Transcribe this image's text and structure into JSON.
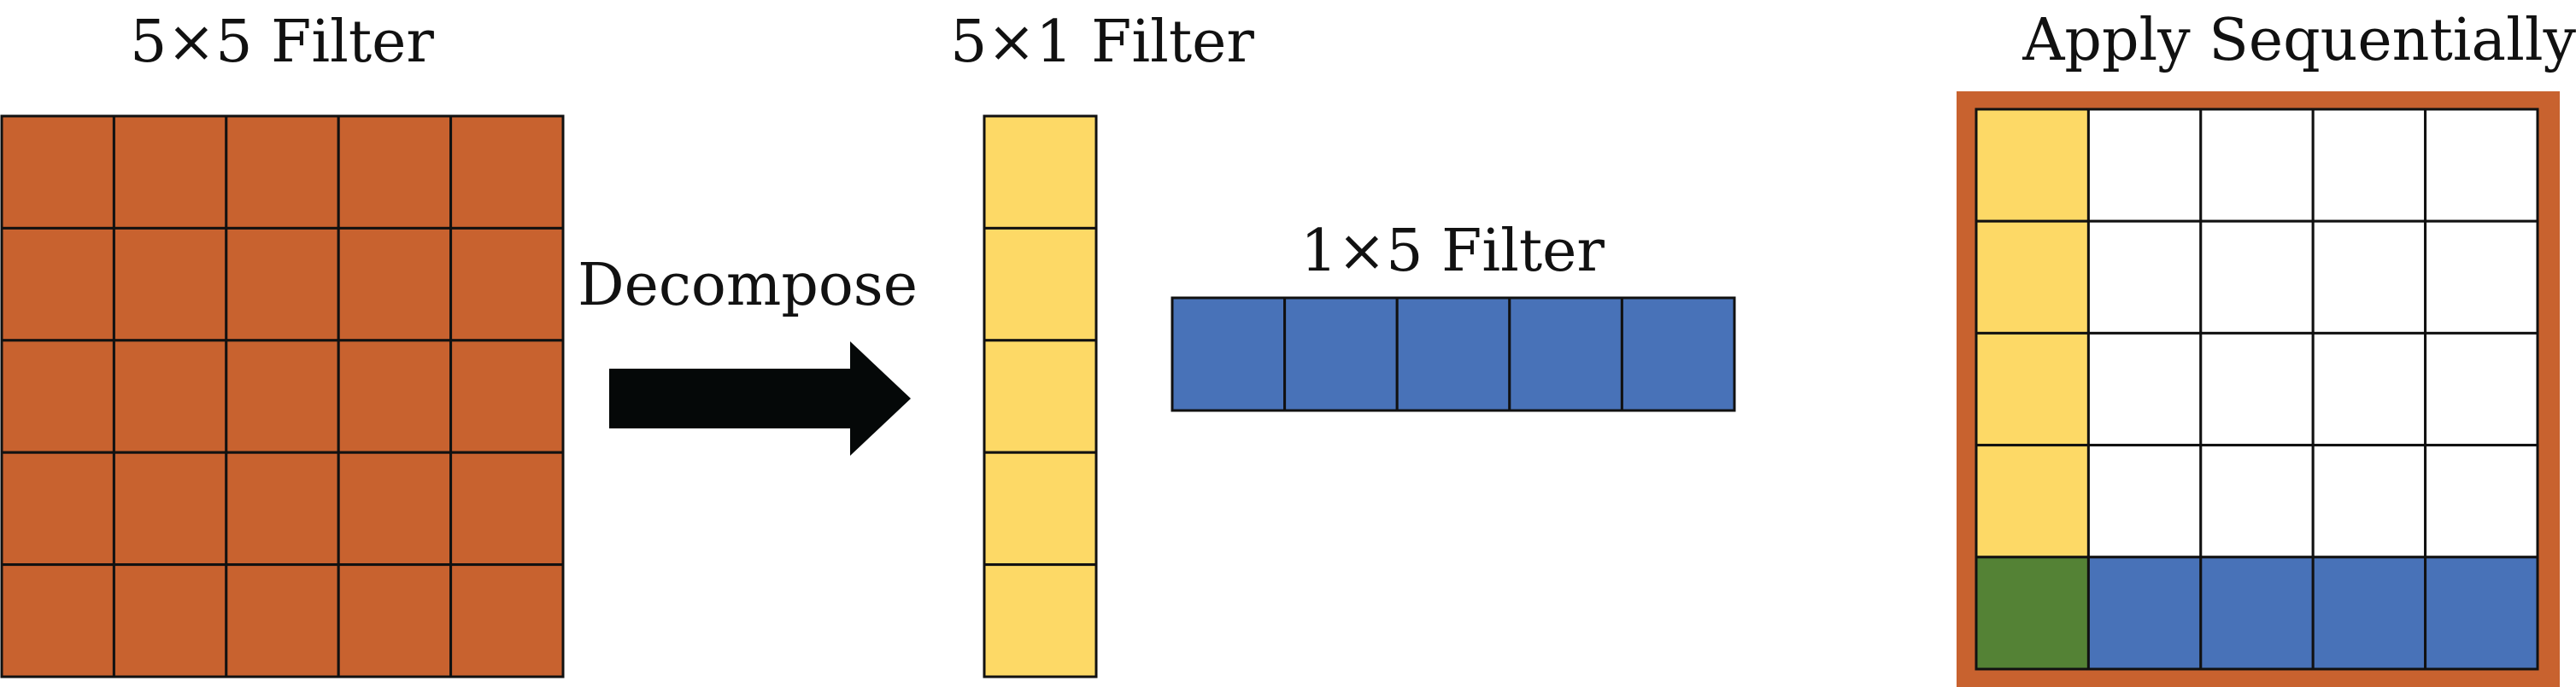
{
  "labels": {
    "filter_5x5": "5×5 Filter",
    "filter_5x1": "5×1 Filter",
    "filter_1x5": "1×5 Filter",
    "decompose": "Decompose",
    "apply": "Apply Sequentially"
  },
  "colors": {
    "orange": "#c8622f",
    "yellow": "#fdd966",
    "blue": "#4872b8",
    "green": "#548235",
    "white": "#ffffff",
    "line": "#111111",
    "arrow": "#050808"
  },
  "grids": {
    "filter_5x5": {
      "rows": 5,
      "cols": 5
    },
    "filter_5x1": {
      "rows": 5,
      "cols": 1
    },
    "filter_1x5": {
      "rows": 1,
      "cols": 5
    },
    "combined": {
      "rows": 5,
      "cols": 5
    }
  }
}
